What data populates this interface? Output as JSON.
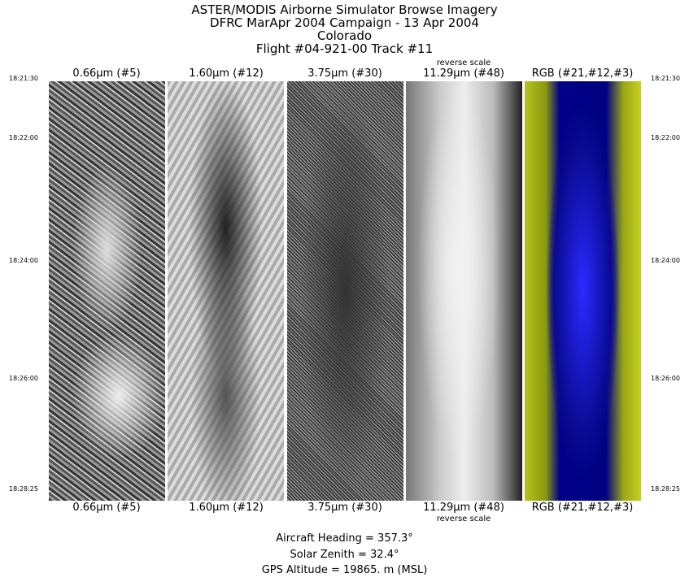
{
  "title_lines": [
    "ASTER/MODIS Airborne Simulator Browse Imagery",
    "DFRC MarApr 2004 Campaign - 13 Apr 2004",
    "Colorado",
    "Flight #04-921-00 Track #11"
  ],
  "panels": [
    {
      "label": "0.66μm (#5)",
      "note": ""
    },
    {
      "label": "1.60μm (#12)",
      "note": ""
    },
    {
      "label": "3.75μm (#30)",
      "note": ""
    },
    {
      "label": "11.29μm (#48)",
      "note": "reverse scale"
    },
    {
      "label": "RGB (#21,#12,#3)",
      "note": ""
    }
  ],
  "times": [
    "18:21:30",
    "18:22:00",
    "18:24:00",
    "18:26:00",
    "18:28:25"
  ],
  "footer": {
    "heading": "Aircraft Heading =  357.3°",
    "zenith": "Solar Zenith =   32.4°",
    "altitude": "GPS Altitude =  19865. m (MSL)"
  }
}
